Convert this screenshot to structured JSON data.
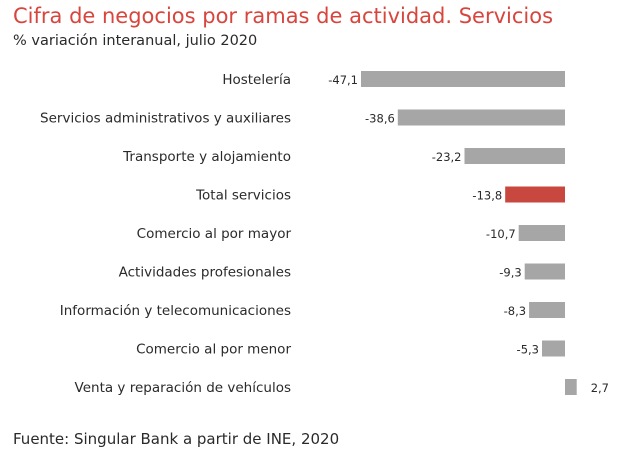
{
  "title": "Cifra de negocios por ramas de actividad. Servicios",
  "subtitle": "% variación interanual, julio 2020",
  "source": "Fuente: Singular Bank a partir de INE, 2020",
  "colors": {
    "title": "#d8453c",
    "bar_default": "#a6a6a6",
    "bar_highlight": "#c8473e"
  },
  "chart_data": {
    "type": "bar",
    "orientation": "horizontal",
    "title": "Cifra de negocios por ramas de actividad. Servicios",
    "subtitle": "% variación interanual, julio 2020",
    "categories": [
      "Hostelería",
      "Servicios administrativos y auxiliares",
      "Transporte y alojamiento",
      "Total servicios",
      "Comercio al por mayor",
      "Actividades profesionales",
      "Información y telecomunicaciones",
      "Comercio al por menor",
      "Venta y reparación de vehículos"
    ],
    "values": [
      -47.1,
      -38.6,
      -23.2,
      -13.8,
      -10.7,
      -9.3,
      -8.3,
      -5.3,
      2.7
    ],
    "value_labels": [
      "-47,1",
      "-38,6",
      "-23,2",
      "-13,8",
      "-10,7",
      "-9,3",
      "-8,3",
      "-5,3",
      "2,7"
    ],
    "highlight": "Total servicios",
    "xlim": [
      -47.1,
      2.7
    ],
    "grid": false,
    "legend": "none"
  }
}
